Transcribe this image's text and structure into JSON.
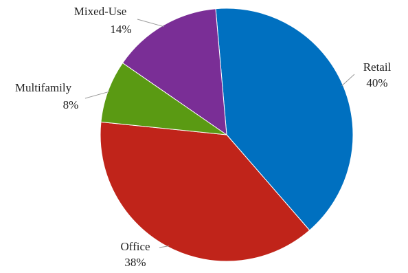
{
  "chart_data": {
    "type": "pie",
    "title": "",
    "slices": [
      {
        "label": "Retail",
        "value": 40,
        "value_label": "40%",
        "color": "#0070C0"
      },
      {
        "label": "Office",
        "value": 38,
        "value_label": "38%",
        "color": "#C0241A"
      },
      {
        "label": "Multifamily",
        "value": 8,
        "value_label": "8%",
        "color": "#5A9A13"
      },
      {
        "label": "Mixed-Use",
        "value": 14,
        "value_label": "14%",
        "color": "#7A2E96"
      }
    ],
    "legend": "none",
    "direction": "clockwise",
    "start": "top"
  }
}
